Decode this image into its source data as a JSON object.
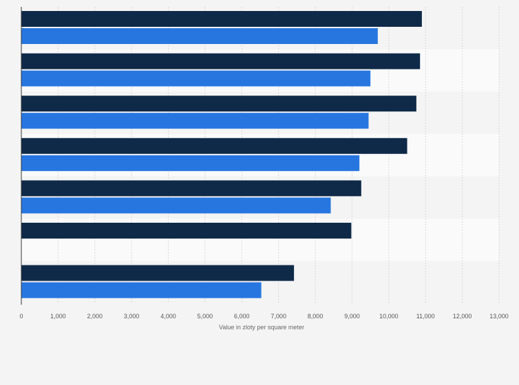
{
  "chart_data": {
    "type": "bar",
    "orientation": "horizontal",
    "categories": [
      "",
      "",
      "",
      "",
      "",
      "",
      ""
    ],
    "series": [
      {
        "values": [
          10900,
          10850,
          10750,
          10500,
          9250,
          8980,
          7420
        ]
      },
      {
        "values": [
          9700,
          9500,
          9450,
          9200,
          8420,
          null,
          6530
        ]
      }
    ],
    "xlim": [
      0,
      13000
    ],
    "xticks": [
      0,
      1000,
      2000,
      3000,
      4000,
      5000,
      6000,
      7000,
      8000,
      9000,
      10000,
      11000,
      12000,
      13000
    ],
    "xtick_labels": [
      "0",
      "1,000",
      "2,000",
      "3,000",
      "4,000",
      "5,000",
      "6,000",
      "7,000",
      "8,000",
      "9,000",
      "10,000",
      "11,000",
      "12,000",
      "13,000"
    ],
    "xlabel": "Value in zloty per square meter",
    "grid": true,
    "legend": "none"
  },
  "colors": {
    "series_dark": "#0f2a48",
    "series_blue": "#2776e0",
    "band_light": "#fafafa",
    "band_dark": "#f4f4f4",
    "grid": "#d8d8d8",
    "axis": "#333333"
  }
}
